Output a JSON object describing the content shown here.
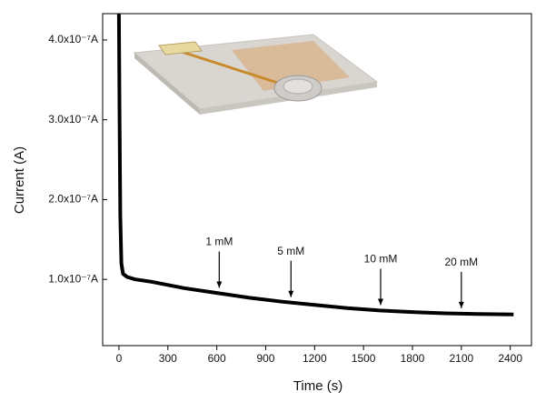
{
  "chart_data": {
    "type": "line",
    "x_label": "Time (s)",
    "y_label": "Current (A)",
    "xlim": [
      -100,
      2530
    ],
    "ylim": [
      1.7e-08,
      4.33e-07
    ],
    "xticks": [
      0,
      300,
      600,
      900,
      1200,
      1500,
      1800,
      2100,
      2400
    ],
    "yticks": [
      {
        "value": 1e-07,
        "label": "1.0x10⁻⁷A"
      },
      {
        "value": 2e-07,
        "label": "2.0x10⁻⁷A"
      },
      {
        "value": 3e-07,
        "label": "3.0x10⁻⁷A"
      },
      {
        "value": 4e-07,
        "label": "4.0x10⁻⁷A"
      }
    ],
    "x": [
      0,
      3,
      8,
      15,
      25,
      50,
      100,
      200,
      400,
      600,
      800,
      1000,
      1200,
      1400,
      1600,
      1800,
      2000,
      2200,
      2420
    ],
    "series": [
      {
        "color": "#000000",
        "values": [
          4.33e-07,
          3.2e-07,
          1.8e-07,
          1.2e-07,
          1.07e-07,
          1.03e-07,
          1e-07,
          9.7e-08,
          8.9e-08,
          8.3e-08,
          7.7e-08,
          7.2e-08,
          6.8e-08,
          6.4e-08,
          6.1e-08,
          5.9e-08,
          5.75e-08,
          5.65e-08,
          5.6e-08
        ]
      }
    ],
    "annotations": [
      {
        "text": "1 mM",
        "x": 615
      },
      {
        "text": "5 mM",
        "x": 1055
      },
      {
        "text": "10 mM",
        "x": 1605
      },
      {
        "text": "20 mM",
        "x": 2100
      }
    ]
  }
}
